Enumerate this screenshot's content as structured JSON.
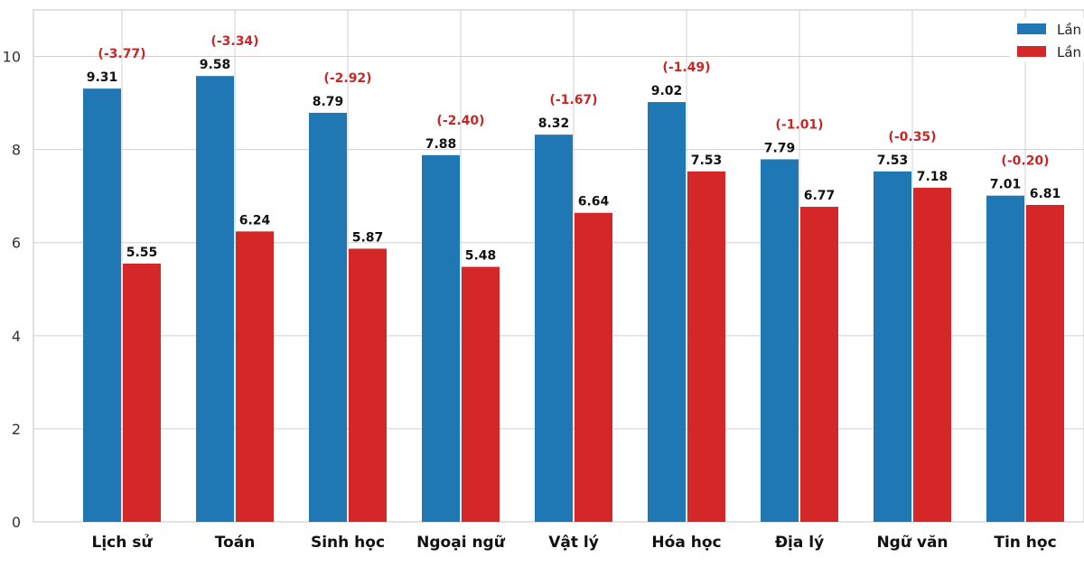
{
  "chart_data": {
    "type": "bar",
    "categories": [
      "Lịch sử",
      "Toán",
      "Sinh học",
      "Ngoại ngữ",
      "Vật lý",
      "Hóa học",
      "Địa lý",
      "Ngữ văn",
      "Tin học"
    ],
    "series": [
      {
        "name": "Lần",
        "color": "#1f77b4",
        "values": [
          9.31,
          9.58,
          8.79,
          7.88,
          8.32,
          9.02,
          7.79,
          7.53,
          7.01
        ]
      },
      {
        "name": "Lần",
        "color": "#d62728",
        "values": [
          5.55,
          6.24,
          5.87,
          5.48,
          6.64,
          7.53,
          6.77,
          7.18,
          6.81
        ]
      }
    ],
    "value_labels": {
      "series_0": [
        "9.31",
        "9.58",
        "8.79",
        "7.88",
        "8.32",
        "9.02",
        "7.79",
        "7.53",
        "7.01"
      ],
      "series_1": [
        "5.55",
        "6.24",
        "5.87",
        "5.48",
        "6.64",
        "7.53",
        "6.77",
        "7.18",
        "6.81"
      ]
    },
    "difference_labels": [
      "(-3.77)",
      "(-3.34)",
      "(-2.92)",
      "(-2.40)",
      "(-1.67)",
      "(-1.49)",
      "(-1.01)",
      "(-0.35)",
      "(-0.20)"
    ],
    "difference_color": "#c62828",
    "ylim": [
      0,
      11
    ],
    "yticks": [
      0,
      2,
      4,
      6,
      8,
      10
    ],
    "ytick_labels": [
      "0",
      "2",
      "4",
      "6",
      "8",
      "10"
    ],
    "grid": true,
    "legend_position": "top-right",
    "title": "",
    "xlabel": "",
    "ylabel": ""
  }
}
